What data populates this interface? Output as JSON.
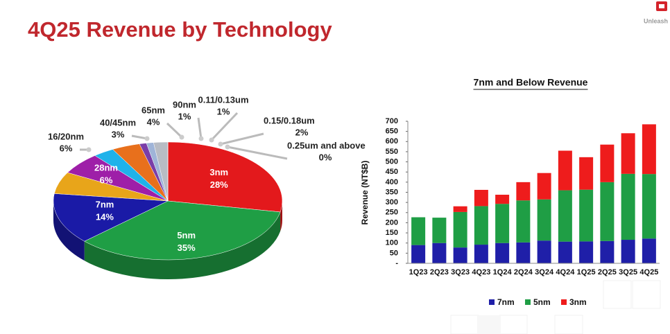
{
  "header": {
    "title": "4Q25 Revenue by Technology",
    "logo_text": "Unleash"
  },
  "chart_data": [
    {
      "type": "pie3d",
      "categories": [
        "3nm",
        "5nm",
        "7nm",
        "16/20nm",
        "28nm",
        "40/45nm",
        "65nm",
        "90nm",
        "0.11/0.13um",
        "0.15/0.18um",
        "0.25um and above"
      ],
      "values": [
        28,
        35,
        14,
        6,
        6,
        3,
        4,
        1,
        1,
        2,
        0
      ],
      "value_labels": [
        "28%",
        "35%",
        "14%",
        "6%",
        "6%",
        "3%",
        "4%",
        "1%",
        "1%",
        "2%",
        "0%"
      ],
      "colors": [
        "#e3191c",
        "#1f9e45",
        "#1a1aa6",
        "#e8a51a",
        "#9e1fa8",
        "#1fb2ea",
        "#e8701c",
        "#7a3ea8",
        "#9fb4d8",
        "#b8bcc4",
        "#c0392b"
      ]
    },
    {
      "type": "stacked_bar",
      "title": "7nm and Below Revenue",
      "y_label": "Revenue (NT$B)",
      "categories": [
        "1Q23",
        "2Q23",
        "3Q23",
        "4Q23",
        "1Q24",
        "2Q24",
        "3Q24",
        "4Q24",
        "1Q25",
        "2Q25",
        "3Q25",
        "4Q25"
      ],
      "series": [
        {
          "name": "7nm",
          "color": "#1f1fa8",
          "values": [
            90,
            100,
            78,
            92,
            100,
            103,
            112,
            107,
            108,
            110,
            116,
            122
          ]
        },
        {
          "name": "5nm",
          "color": "#1f9e45",
          "values": [
            137,
            125,
            175,
            190,
            193,
            207,
            203,
            253,
            255,
            290,
            325,
            318
          ]
        },
        {
          "name": "3nm",
          "color": "#ee1c1c",
          "values": [
            0,
            0,
            28,
            80,
            45,
            90,
            130,
            195,
            160,
            185,
            200,
            245
          ]
        }
      ],
      "ylim": [
        0,
        700
      ],
      "yticks": [
        {
          "value": 0,
          "label": "-"
        },
        50,
        100,
        150,
        200,
        250,
        300,
        350,
        400,
        450,
        500,
        550,
        600,
        650,
        700
      ],
      "legend": "bottom"
    }
  ]
}
